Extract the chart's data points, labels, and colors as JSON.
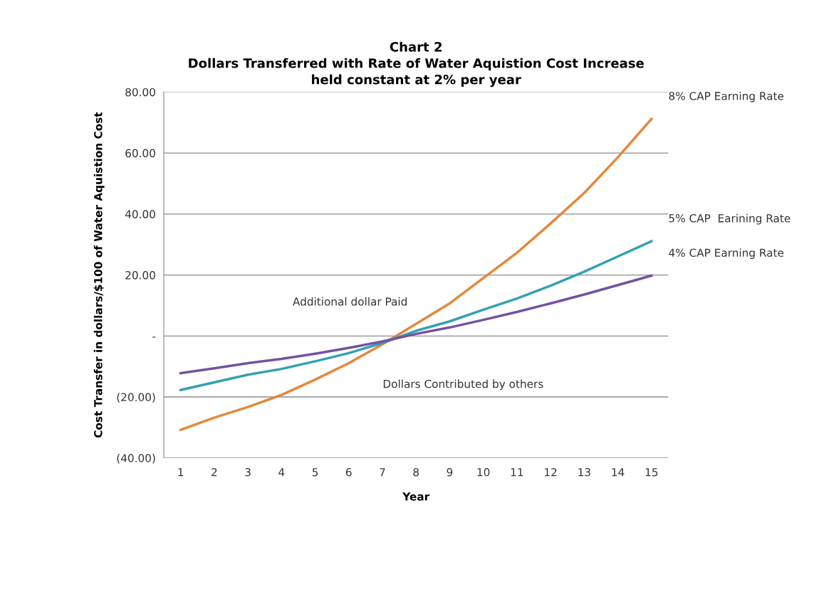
{
  "chart_data": {
    "type": "line",
    "title": "Chart 2\nDollars Transferred with Rate of Water Aquistion Cost Increase\nheld constant at 2% per year",
    "xlabel": "Year",
    "ylabel": "Cost Transfer in dollars/$100 of Water Aquistion Cost",
    "categories": [
      "1",
      "2",
      "3",
      "4",
      "5",
      "6",
      "7",
      "8",
      "9",
      "10",
      "11",
      "12",
      "13",
      "14",
      "15"
    ],
    "series": [
      {
        "name": "8% CAP Earning Rate",
        "color": "#e6873a",
        "values": [
          -30.8,
          -26.8,
          -23.3,
          -19.3,
          -14.3,
          -8.9,
          -2.7,
          4.0,
          10.7,
          19.0,
          27.3,
          36.9,
          46.9,
          58.6,
          71.2
        ]
      },
      {
        "name": "5% CAP  Earining Rate",
        "color": "#34a0b2",
        "values": [
          -17.7,
          -15.2,
          -12.7,
          -10.8,
          -8.3,
          -5.6,
          -2.3,
          1.7,
          4.8,
          8.6,
          12.3,
          16.5,
          21.1,
          26.1,
          31.1
        ]
      },
      {
        "name": "4% CAP Earning Rate",
        "color": "#7352a0",
        "values": [
          -12.2,
          -10.6,
          -8.9,
          -7.5,
          -5.8,
          -3.9,
          -1.8,
          0.7,
          2.8,
          5.3,
          7.9,
          10.7,
          13.6,
          16.7,
          19.8
        ]
      }
    ],
    "ylim": [
      -40,
      80
    ],
    "yticks": [
      {
        "value": 80,
        "label": "80.00"
      },
      {
        "value": 60,
        "label": "60.00"
      },
      {
        "value": 40,
        "label": "40.00"
      },
      {
        "value": 20,
        "label": "20.00"
      },
      {
        "value": 0,
        "label": "-"
      },
      {
        "value": -20,
        "label": "(20.00)"
      },
      {
        "value": -40,
        "label": "(40.00)"
      }
    ],
    "grid": "y",
    "legend": false,
    "marker": "none",
    "line_style": "solid",
    "annotations": [
      "Additional dollar Paid",
      "Dollars Contributed by others"
    ]
  }
}
